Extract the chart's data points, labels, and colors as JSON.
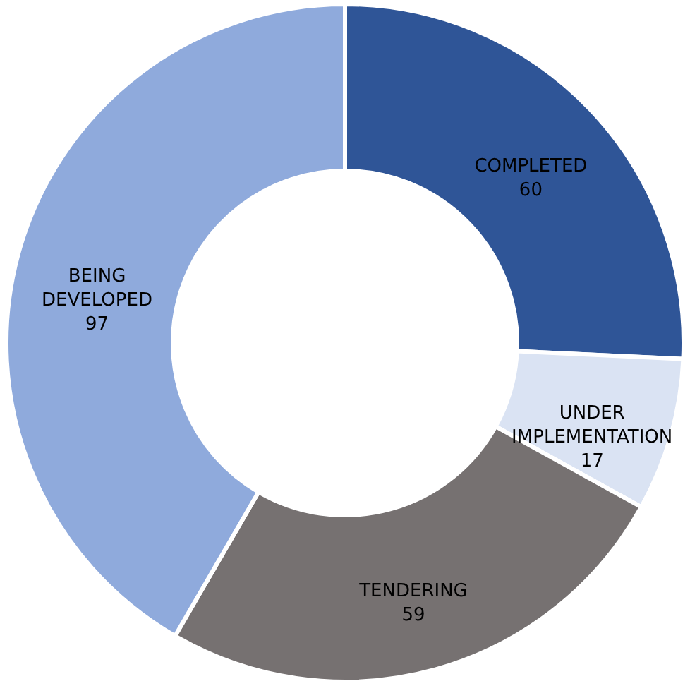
{
  "chart_data": {
    "type": "donut",
    "categories": [
      "COMPLETED",
      "UNDER IMPLEMENTATION",
      "TENDERING",
      "BEING DEVELOPED"
    ],
    "values": [
      60,
      17,
      59,
      97
    ],
    "colors": [
      "#2f5597",
      "#dae3f3",
      "#767171",
      "#8faadc"
    ],
    "data_labels": true,
    "legend": false
  }
}
